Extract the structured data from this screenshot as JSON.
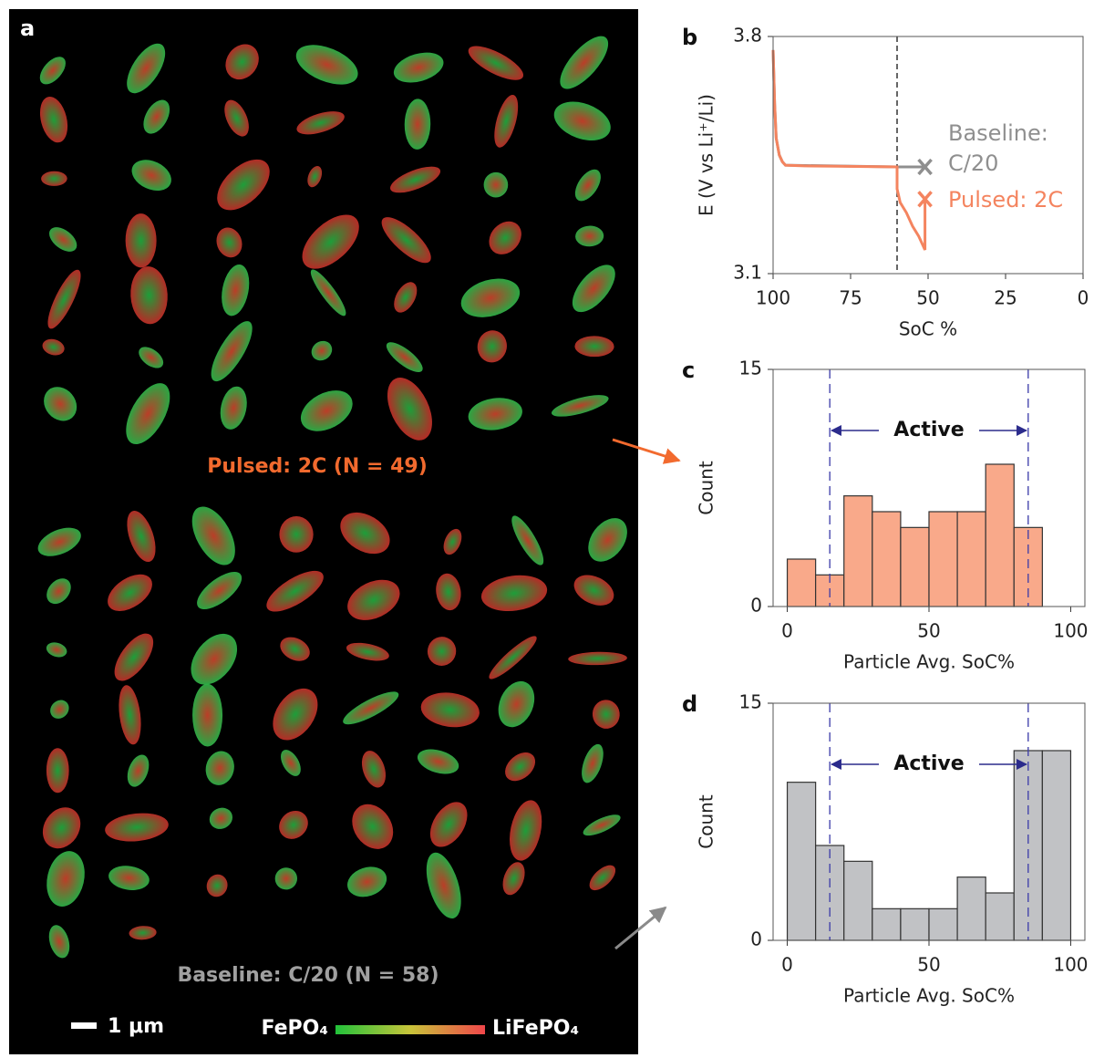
{
  "panel_a": {
    "label": "a",
    "pulsed_caption": "Pulsed: 2C (N = 49)",
    "baseline_caption": "Baseline: C/20 (N = 58)",
    "scale_bar": "1 μm",
    "colorbar_left": "FePO₄",
    "colorbar_right": "LiFePO₄"
  },
  "chart_data": [
    {
      "type": "line",
      "panel_label": "b",
      "xlabel": "SoC %",
      "ylabel": "E (V vs Li⁺/Li)",
      "xlim": [
        100,
        0
      ],
      "ylim": [
        3.1,
        3.8
      ],
      "xticks": [
        100,
        75,
        50,
        25,
        0
      ],
      "yticks": [
        3.1,
        3.8
      ],
      "marker_x": 60,
      "labels": [
        "Baseline:",
        "C/20",
        "Pulsed: 2C"
      ],
      "series": [
        {
          "color": "#8f8f8f",
          "x": [
            100,
            99.5,
            99,
            98,
            97,
            96,
            60,
            51
          ],
          "values": [
            3.76,
            3.6,
            3.5,
            3.45,
            3.43,
            3.42,
            3.415,
            3.415
          ]
        },
        {
          "color": "#f4845f",
          "x": [
            100,
            99.5,
            99,
            98,
            97,
            96,
            90,
            80,
            70,
            60,
            60,
            59,
            57,
            55,
            53,
            51,
            51
          ],
          "values": [
            3.76,
            3.6,
            3.5,
            3.45,
            3.43,
            3.42,
            3.418,
            3.417,
            3.416,
            3.415,
            3.35,
            3.31,
            3.28,
            3.24,
            3.21,
            3.17,
            3.32
          ]
        }
      ]
    },
    {
      "type": "histogram",
      "panel_label": "c",
      "xlabel": "Particle Avg. SoC%",
      "ylabel": "Count",
      "xlim": [
        -5,
        105
      ],
      "ylim": [
        0,
        15
      ],
      "xticks": [
        0,
        50,
        100
      ],
      "yticks": [
        0,
        15
      ],
      "color": "#f9a98a",
      "annotation": "Active",
      "active_range": [
        15,
        85
      ],
      "bins": [
        0,
        10,
        20,
        30,
        40,
        50,
        60,
        70,
        80,
        90
      ],
      "values": [
        3,
        2,
        7,
        6,
        5,
        6,
        6,
        9,
        5
      ]
    },
    {
      "type": "histogram",
      "panel_label": "d",
      "xlabel": "Particle Avg. SoC%",
      "ylabel": "Count",
      "xlim": [
        -5,
        105
      ],
      "ylim": [
        0,
        15
      ],
      "xticks": [
        0,
        50,
        100
      ],
      "yticks": [
        0,
        15
      ],
      "color": "#c1c2c5",
      "annotation": "Active",
      "active_range": [
        15,
        85
      ],
      "bins": [
        0,
        10,
        20,
        30,
        40,
        50,
        60,
        70,
        80,
        90,
        100
      ],
      "values": [
        10,
        6,
        5,
        2,
        2,
        2,
        4,
        3,
        12,
        12
      ]
    }
  ]
}
